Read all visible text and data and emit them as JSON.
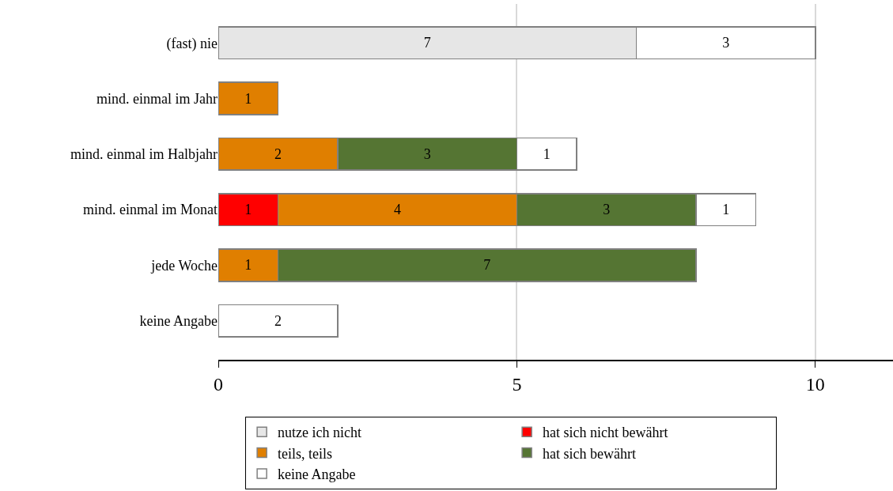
{
  "chart_data": {
    "type": "bar",
    "orientation": "horizontal",
    "stacked": true,
    "data_labels": true,
    "grid": "x",
    "legend": "bottom",
    "categories": [
      "(fast) nie",
      "mind. einmal im Jahr",
      "mind. einmal im Halbjahr",
      "mind. einmal im Monat",
      "jede Woche",
      "keine Angabe"
    ],
    "xlim": [
      0,
      11.3
    ],
    "xticks": [
      0,
      5,
      10
    ],
    "series": [
      {
        "name": "nutze ich nicht",
        "color": "#e6e6e6",
        "values": [
          7,
          null,
          null,
          null,
          null,
          null
        ]
      },
      {
        "name": "hat sich nicht bewährt",
        "color": "#ff0000",
        "values": [
          null,
          null,
          null,
          1,
          null,
          null
        ]
      },
      {
        "name": "teils, teils",
        "color": "#e07f00",
        "values": [
          null,
          1,
          2,
          4,
          1,
          null
        ]
      },
      {
        "name": "hat sich bewährt",
        "color": "#557533",
        "values": [
          null,
          null,
          3,
          3,
          7,
          null
        ]
      },
      {
        "name": "keine Angabe",
        "color": "#ffffff",
        "values": [
          3,
          null,
          1,
          1,
          null,
          2
        ]
      }
    ]
  }
}
